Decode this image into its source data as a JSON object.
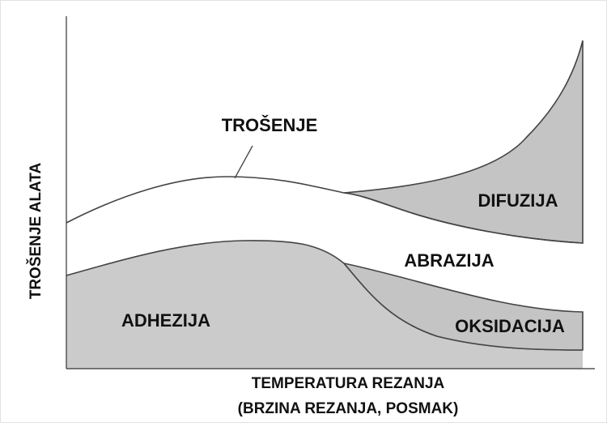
{
  "diagram": {
    "curve_label": "TROŠENJE",
    "y_axis_label": "TROŠENJE ALATA",
    "x_axis_label": [
      "TEMPERATURA REZANJA",
      "(BRZINA REZANJA, POSMAK)"
    ],
    "regions": [
      "DIFUZIJA",
      "ABRAZIJA",
      "ADHEZIJA",
      "OKSIDACIJA"
    ]
  }
}
